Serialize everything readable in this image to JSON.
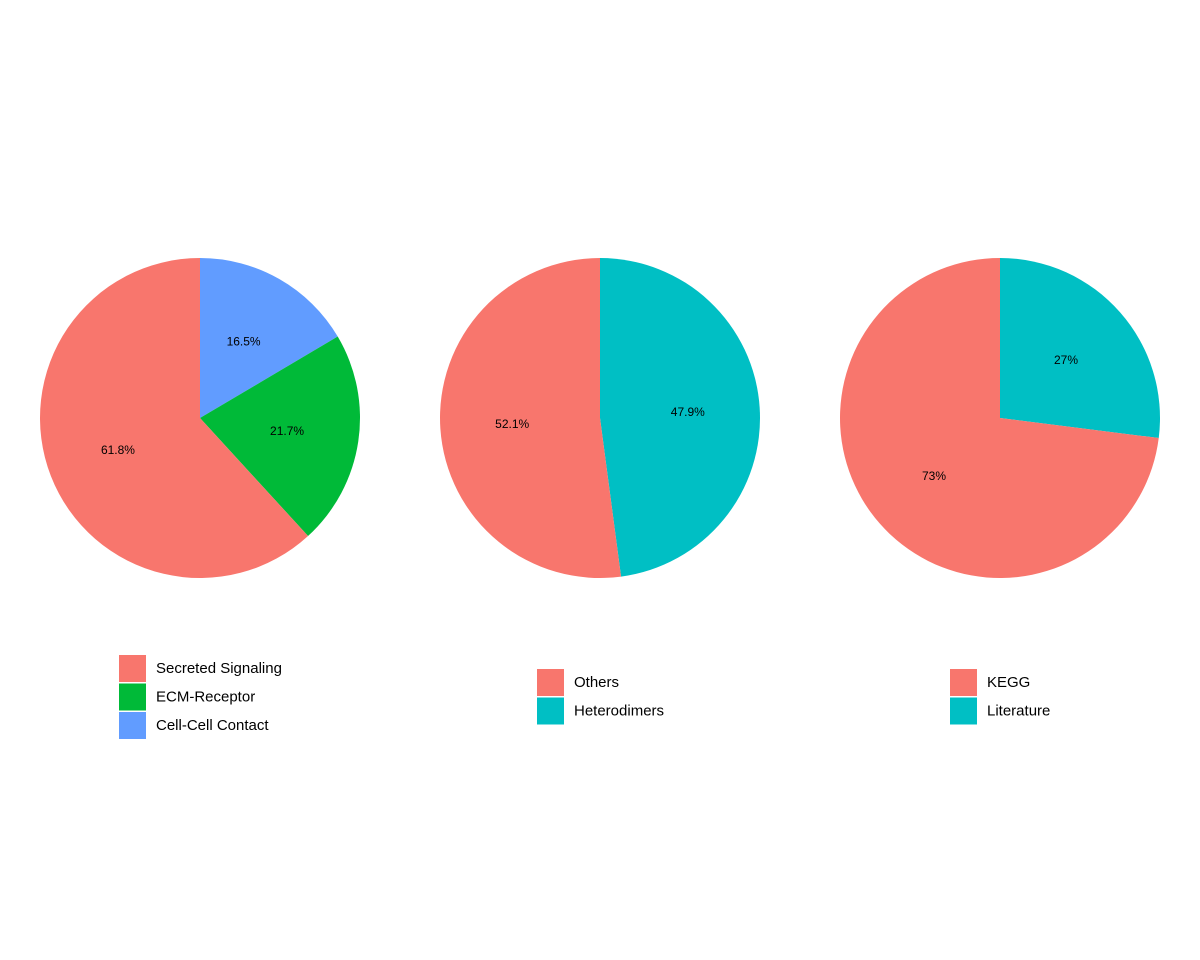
{
  "chart_data": [
    {
      "type": "pie",
      "title": "",
      "slices": [
        {
          "label": "Secreted Signaling",
          "value": 61.8,
          "display": "61.8%",
          "color": "#F8766D"
        },
        {
          "label": "ECM-Receptor",
          "value": 21.7,
          "display": "21.7%",
          "color": "#00BA38"
        },
        {
          "label": "Cell-Cell Contact",
          "value": 16.5,
          "display": "16.5%",
          "color": "#619CFF"
        }
      ],
      "legend_position": "bottom"
    },
    {
      "type": "pie",
      "title": "",
      "slices": [
        {
          "label": "Others",
          "value": 52.1,
          "display": "52.1%",
          "color": "#F8766D"
        },
        {
          "label": "Heterodimers",
          "value": 47.9,
          "display": "47.9%",
          "color": "#00BFC4"
        }
      ],
      "legend_position": "bottom"
    },
    {
      "type": "pie",
      "title": "",
      "slices": [
        {
          "label": "KEGG",
          "value": 73,
          "display": "73%",
          "color": "#F8766D"
        },
        {
          "label": "Literature",
          "value": 27,
          "display": "27%",
          "color": "#00BFC4"
        }
      ],
      "legend_position": "bottom"
    }
  ]
}
